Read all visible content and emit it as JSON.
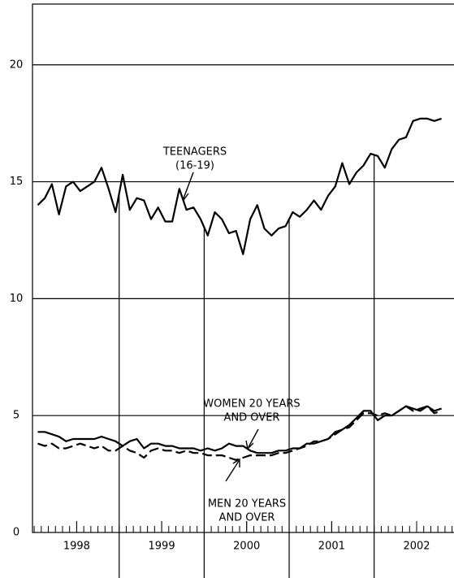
{
  "chart_data": {
    "type": "line",
    "x": [
      1998.042,
      1998.125,
      1998.208,
      1998.292,
      1998.375,
      1998.458,
      1998.542,
      1998.625,
      1998.708,
      1998.792,
      1998.875,
      1998.958,
      1999.042,
      1999.125,
      1999.208,
      1999.292,
      1999.375,
      1999.458,
      1999.542,
      1999.625,
      1999.708,
      1999.792,
      1999.875,
      1999.958,
      2000.042,
      2000.125,
      2000.208,
      2000.292,
      2000.375,
      2000.458,
      2000.542,
      2000.625,
      2000.708,
      2000.792,
      2000.875,
      2000.958,
      2001.042,
      2001.125,
      2001.208,
      2001.292,
      2001.375,
      2001.458,
      2001.542,
      2001.625,
      2001.708,
      2001.792,
      2001.875,
      2001.958,
      2002.042,
      2002.125,
      2002.208,
      2002.292,
      2002.375,
      2002.458,
      2002.542,
      2002.625,
      2002.708,
      2002.792
    ],
    "series": [
      {
        "name": [
          "TEENAGERS",
          "(16-19)"
        ],
        "color": "#000000",
        "dash": false,
        "values": [
          14.0,
          14.3,
          14.9,
          13.6,
          14.8,
          15.0,
          14.6,
          14.8,
          15.0,
          15.6,
          14.7,
          13.7,
          15.3,
          13.8,
          14.3,
          14.2,
          13.4,
          13.9,
          13.3,
          13.3,
          14.7,
          13.8,
          13.9,
          13.4,
          12.7,
          13.7,
          13.4,
          12.8,
          12.9,
          11.9,
          13.4,
          14.0,
          13.0,
          12.7,
          13.0,
          13.1,
          13.7,
          13.5,
          13.8,
          14.2,
          13.8,
          14.4,
          14.8,
          15.8,
          14.9,
          15.4,
          15.7,
          16.2,
          16.1,
          15.6,
          16.4,
          16.8,
          16.9,
          17.6,
          17.7,
          17.7,
          17.6,
          17.7
        ]
      },
      {
        "name": [
          "WOMEN 20 YEARS",
          "AND OVER"
        ],
        "color": "#000000",
        "dash": false,
        "values": [
          4.3,
          4.3,
          4.2,
          4.1,
          3.9,
          4.0,
          4.0,
          4.0,
          4.0,
          4.1,
          4.0,
          3.9,
          3.7,
          3.9,
          4.0,
          3.6,
          3.8,
          3.8,
          3.7,
          3.7,
          3.6,
          3.6,
          3.6,
          3.5,
          3.6,
          3.5,
          3.6,
          3.8,
          3.7,
          3.7,
          3.5,
          3.4,
          3.4,
          3.4,
          3.5,
          3.5,
          3.6,
          3.6,
          3.8,
          3.8,
          3.9,
          4.0,
          4.3,
          4.4,
          4.6,
          4.9,
          5.2,
          5.2,
          4.8,
          5.0,
          5.0,
          5.2,
          5.4,
          5.3,
          5.2,
          5.4,
          5.2,
          5.3
        ]
      },
      {
        "name": [
          "MEN 20 YEARS",
          "AND OVER"
        ],
        "color": "#000000",
        "dash": true,
        "values": [
          3.8,
          3.7,
          3.8,
          3.6,
          3.6,
          3.7,
          3.8,
          3.7,
          3.6,
          3.7,
          3.5,
          3.5,
          3.7,
          3.5,
          3.4,
          3.2,
          3.5,
          3.6,
          3.5,
          3.5,
          3.4,
          3.5,
          3.4,
          3.4,
          3.3,
          3.3,
          3.3,
          3.2,
          3.1,
          3.2,
          3.3,
          3.3,
          3.3,
          3.3,
          3.4,
          3.4,
          3.5,
          3.6,
          3.7,
          3.9,
          3.9,
          4.0,
          4.2,
          4.4,
          4.5,
          4.8,
          5.1,
          5.1,
          5.0,
          5.1,
          5.0,
          5.2,
          5.4,
          5.2,
          5.3,
          5.4,
          5.1,
          5.2
        ]
      }
    ],
    "xlim": [
      1997.98,
      2002.93
    ],
    "xticks": [
      {
        "value": 1998.5,
        "label": "1998"
      },
      {
        "value": 1999.5,
        "label": "1999"
      },
      {
        "value": 2000.5,
        "label": "2000"
      },
      {
        "value": 2001.5,
        "label": "2001"
      },
      {
        "value": 2002.5,
        "label": "2002"
      }
    ],
    "ylim": [
      0,
      22.6
    ],
    "yticks": [
      0,
      5,
      10,
      15,
      20
    ],
    "grid": true
  }
}
